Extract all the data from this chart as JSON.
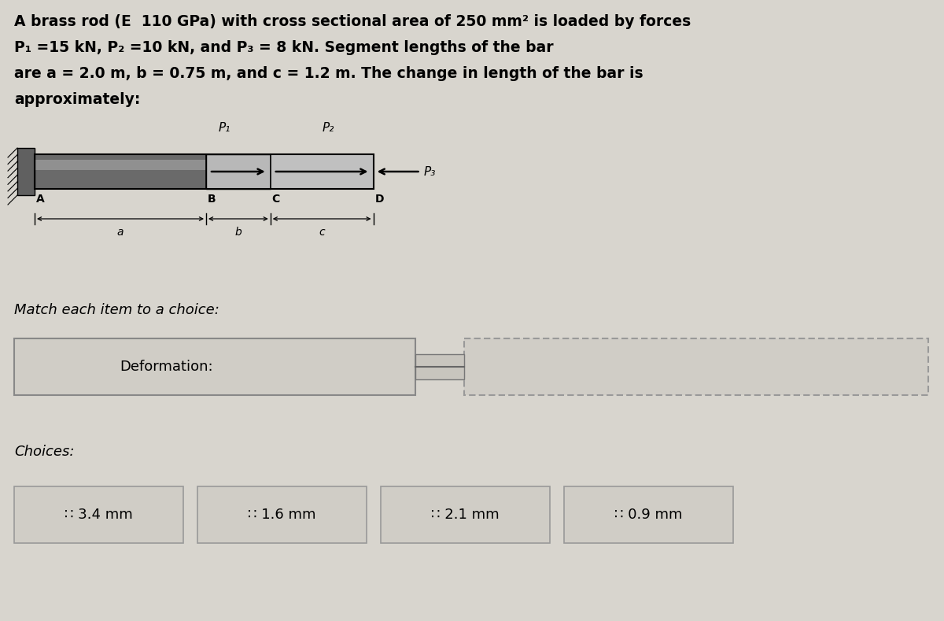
{
  "bg_color": "#d8d5ce",
  "title_lines": [
    "A brass rod (E  110 GPa) with cross sectional area of 250 mm² is loaded by forces",
    "P₁ =15 kN, P₂ =10 kN, and P₃ = 8 kN. Segment lengths of the bar",
    "are a = 2.0 m, b = 0.75 m, and c = 1.2 m. The change in length of the bar is",
    "approximately:"
  ],
  "match_label": "Match each item to a choice:",
  "item_label": "Deformation:",
  "choices_label": "Choices:",
  "choices": [
    ":  3.4 mm",
    ":  1.6 mm",
    ":  2.1 mm",
    ":  0.9 mm"
  ],
  "rod_labels": [
    "A",
    "B",
    "C",
    "D"
  ],
  "segment_labels": [
    "a",
    "b",
    "c"
  ],
  "force_labels": [
    "P₁",
    "P₂",
    "P₃"
  ],
  "seg_a": 2.0,
  "seg_b": 0.75,
  "seg_c": 1.2
}
